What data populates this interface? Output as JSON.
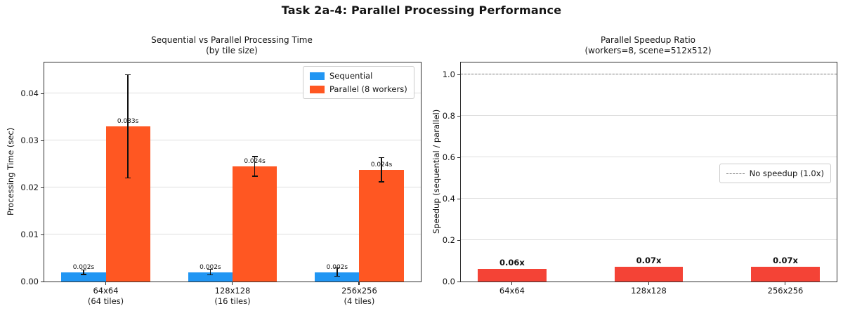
{
  "figure_title": "Task 2a-4: Parallel Processing Performance",
  "colors": {
    "sequential": "#2196f3",
    "parallel": "#ff5722",
    "speedup": "#f44336",
    "grid": "#dedede",
    "spine": "#2f2f2f",
    "errorbar": "#101010",
    "dashed_reference": "#7a7a7a",
    "background": "#ffffff"
  },
  "chart_data": [
    {
      "type": "bar",
      "title": "Sequential vs Parallel Processing Time",
      "subtitle": "(by tile size)",
      "ylabel": "Processing Time (sec)",
      "categories": [
        "64x64",
        "128x128",
        "256x256"
      ],
      "category_sublabels": [
        "(64 tiles)",
        "(16 tiles)",
        "(4 tiles)"
      ],
      "yticks": [
        0.0,
        0.01,
        0.02,
        0.03,
        0.04
      ],
      "ytick_labels": [
        "0.00",
        "0.01",
        "0.02",
        "0.03",
        "0.04"
      ],
      "ylim": [
        0,
        0.0466
      ],
      "xlim": [
        -0.485,
        2.485
      ],
      "bar_width": 0.35,
      "bar_offsets": [
        -0.175,
        0.175
      ],
      "grid": true,
      "legend_position": "upper right",
      "series": [
        {
          "name": "Sequential",
          "color": "#2196f3",
          "values": [
            0.002,
            0.002,
            0.002
          ],
          "errors": [
            0.0005,
            0.0006,
            0.0009
          ],
          "labels": [
            "0.002s",
            "0.002s",
            "0.002s"
          ]
        },
        {
          "name": "Parallel (8 workers)",
          "color": "#ff5722",
          "values": [
            0.033,
            0.0245,
            0.0238
          ],
          "errors": [
            0.011,
            0.0021,
            0.0026
          ],
          "labels": [
            "0.033s",
            "0.024s",
            "0.024s"
          ]
        }
      ]
    },
    {
      "type": "bar",
      "title": "Parallel Speedup Ratio",
      "subtitle": "(workers=8, scene=512x512)",
      "ylabel": "Speedup (sequential / parallel)",
      "categories": [
        "64x64",
        "128x128",
        "256x256"
      ],
      "yticks": [
        0.0,
        0.2,
        0.4,
        0.6,
        0.8,
        1.0
      ],
      "ytick_labels": [
        "0.0",
        "0.2",
        "0.4",
        "0.6",
        "0.8",
        "1.0"
      ],
      "ylim": [
        0,
        1.058
      ],
      "xlim": [
        -0.375,
        2.375
      ],
      "bar_width": 0.5,
      "bar_offsets": [
        0
      ],
      "grid": true,
      "legend_position": "center right",
      "reference_line": {
        "value": 1.0,
        "label": "No speedup (1.0x)"
      },
      "series": [
        {
          "name": "Speedup",
          "color": "#f44336",
          "values": [
            0.06,
            0.07,
            0.07
          ],
          "labels": [
            "0.06x",
            "0.07x",
            "0.07x"
          ],
          "label_bold": true
        }
      ]
    }
  ]
}
